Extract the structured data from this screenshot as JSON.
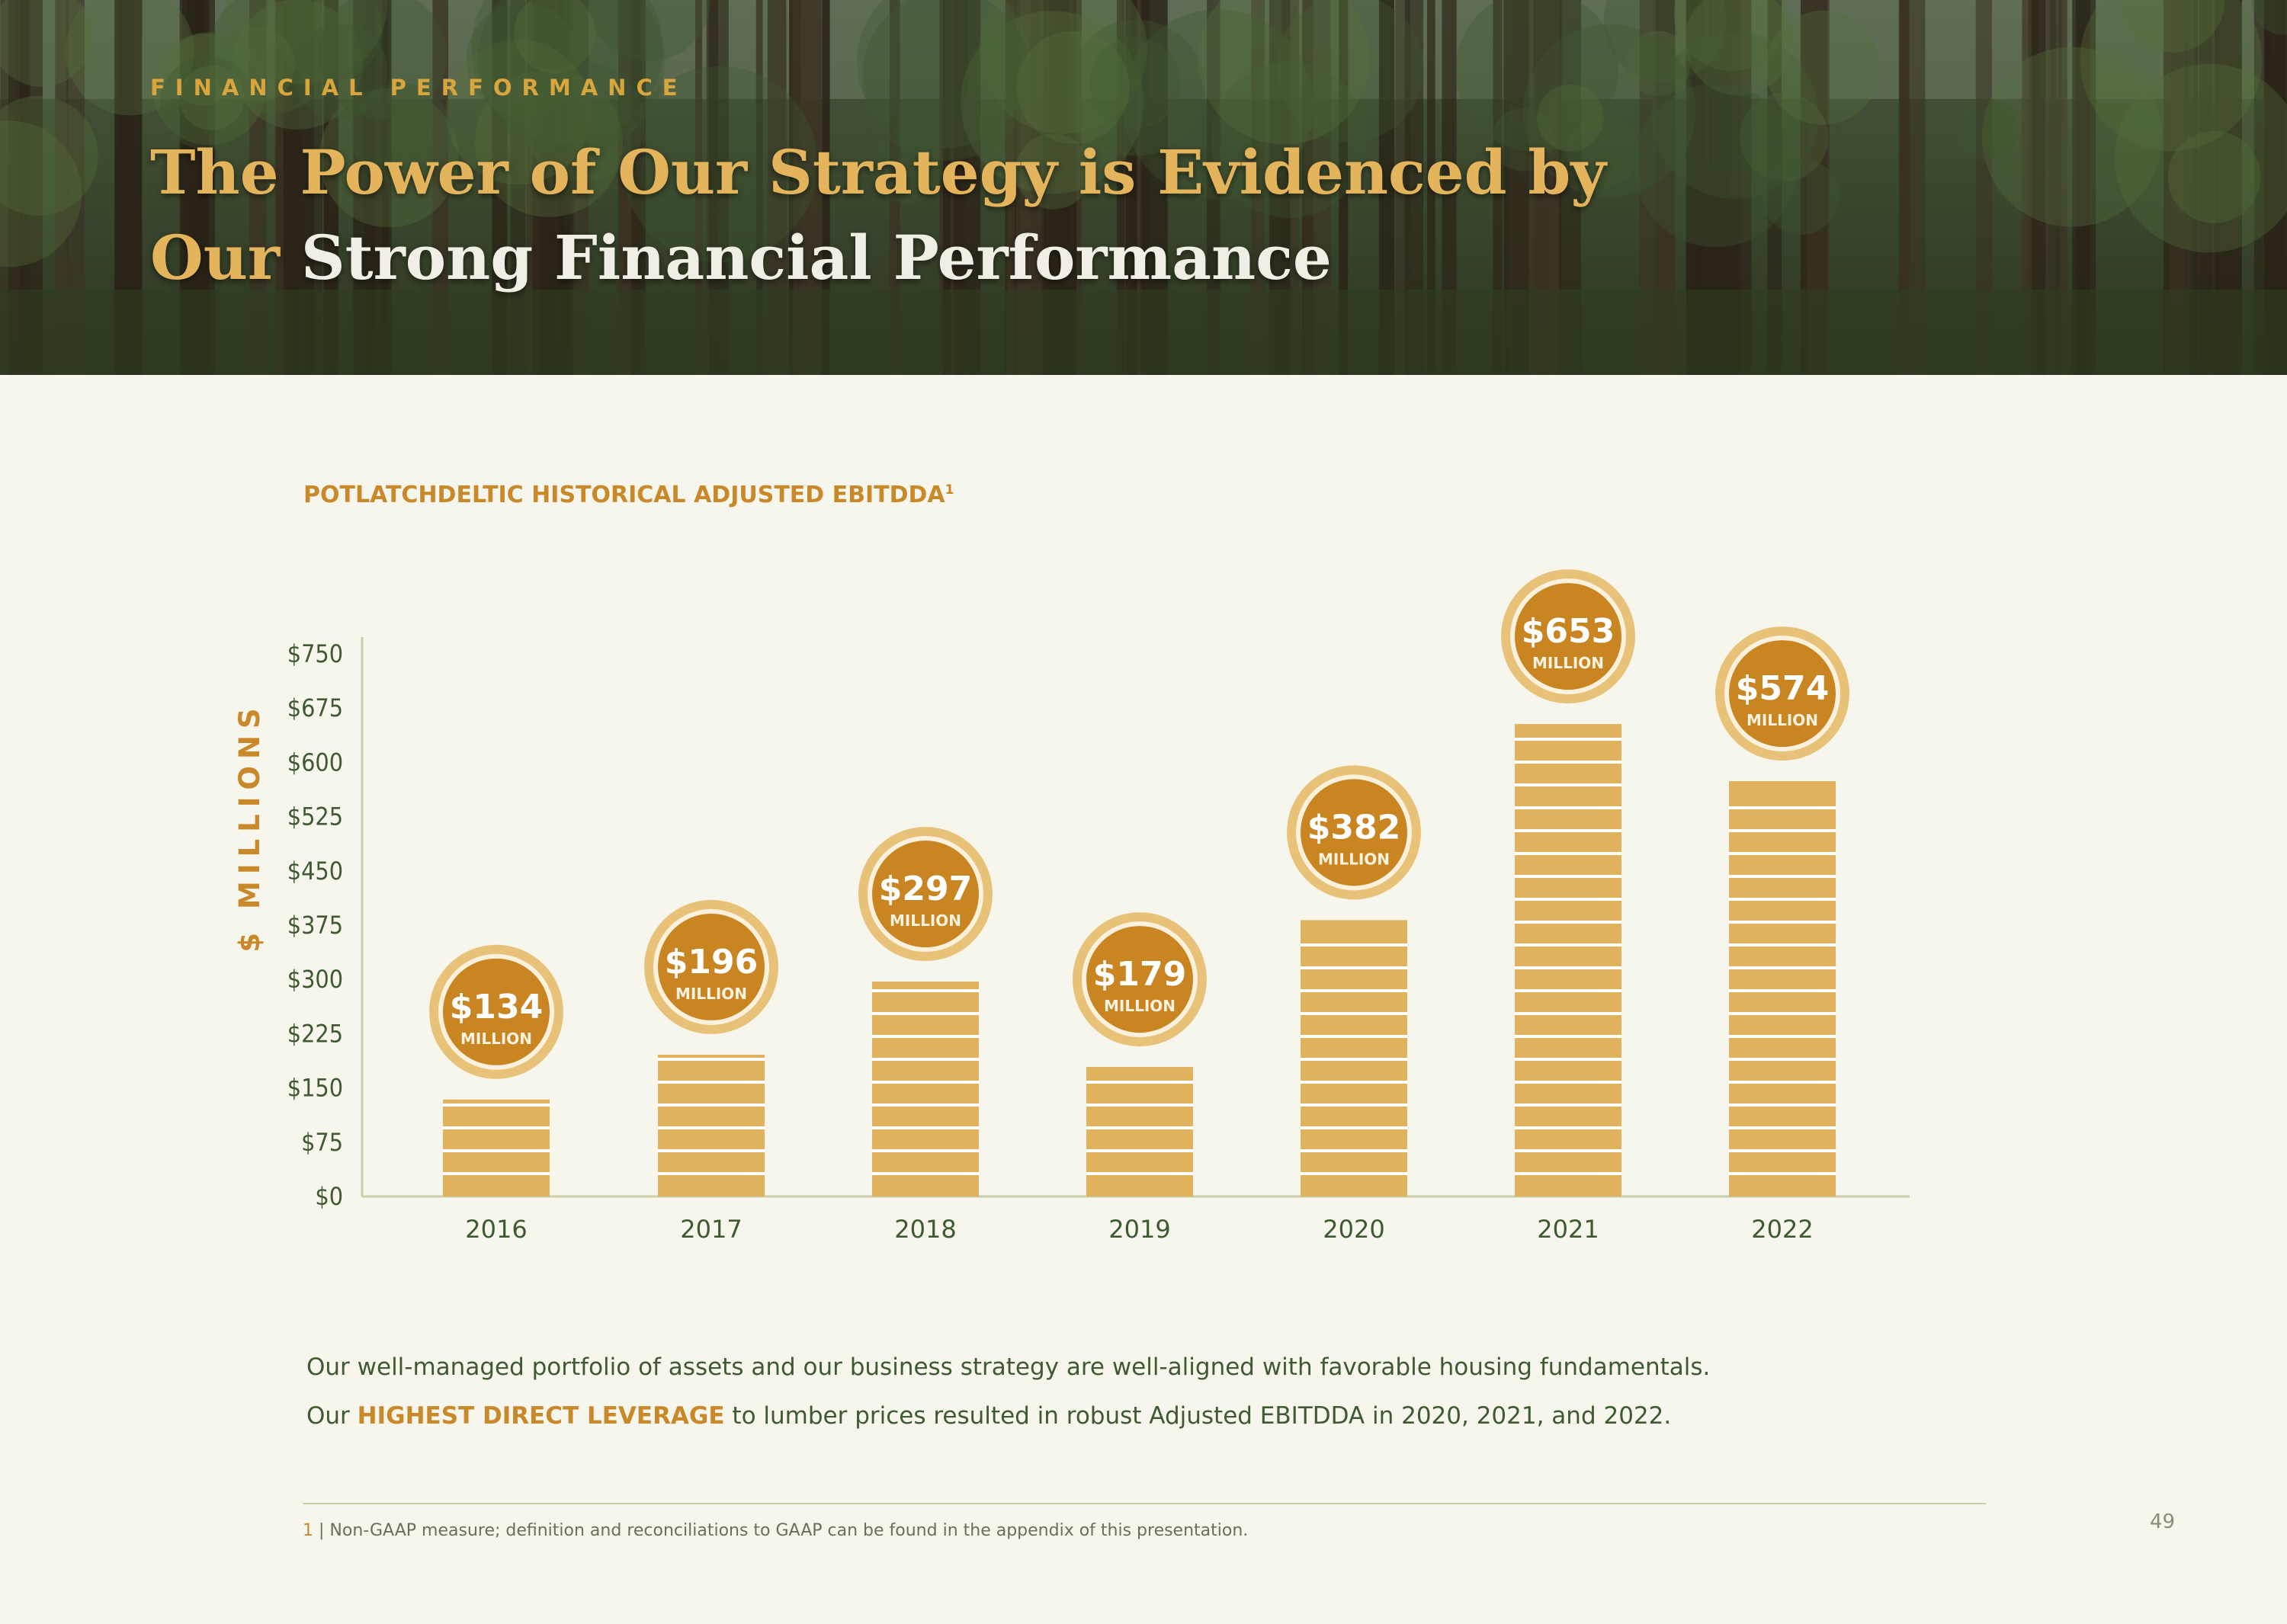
{
  "header": {
    "kicker": "FINANCIAL PERFORMANCE",
    "headline_line1": "The Power of Our Strategy is Evidenced by",
    "headline_line2_gold": "Our",
    "headline_line2_white": "Strong Financial Performance"
  },
  "chart_data": {
    "type": "bar",
    "title": "POTLATCHDELTIC HISTORICAL ADJUSTED EBITDDA",
    "title_superscript": "1",
    "ylabel": "$ MILLIONS",
    "xlabel": "",
    "ylim": [
      0,
      750
    ],
    "yticks": [
      "$0",
      "$75",
      "$150",
      "$225",
      "$300",
      "$375",
      "$450",
      "$525",
      "$600",
      "$675",
      "$750"
    ],
    "categories": [
      "2016",
      "2017",
      "2018",
      "2019",
      "2020",
      "2021",
      "2022"
    ],
    "values": [
      134,
      196,
      297,
      179,
      382,
      653,
      574
    ],
    "data_labels": [
      "$134",
      "$196",
      "$297",
      "$179",
      "$382",
      "$653",
      "$574"
    ],
    "data_label_unit": "MILLION",
    "grid": false,
    "colors": {
      "bar": "#e0b25d",
      "bar_stripe": "#ffffff",
      "badge": "#c98522",
      "badge_ring": "#e9c279",
      "axis": "#c9cda8"
    }
  },
  "body": {
    "line1": "Our well-managed portfolio of assets and our business strategy are well-aligned with favorable housing fundamentals.",
    "line2_prefix": "Our",
    "line2_emphasis": "HIGHEST DIRECT LEVERAGE",
    "line2_suffix": "to lumber prices resulted in robust Adjusted EBITDDA in 2020, 2021, and 2022."
  },
  "footnote": {
    "number": "1",
    "text": "| Non-GAAP measure; definition and reconciliations to GAAP can be found in the appendix of this presentation."
  },
  "page_number": "49"
}
